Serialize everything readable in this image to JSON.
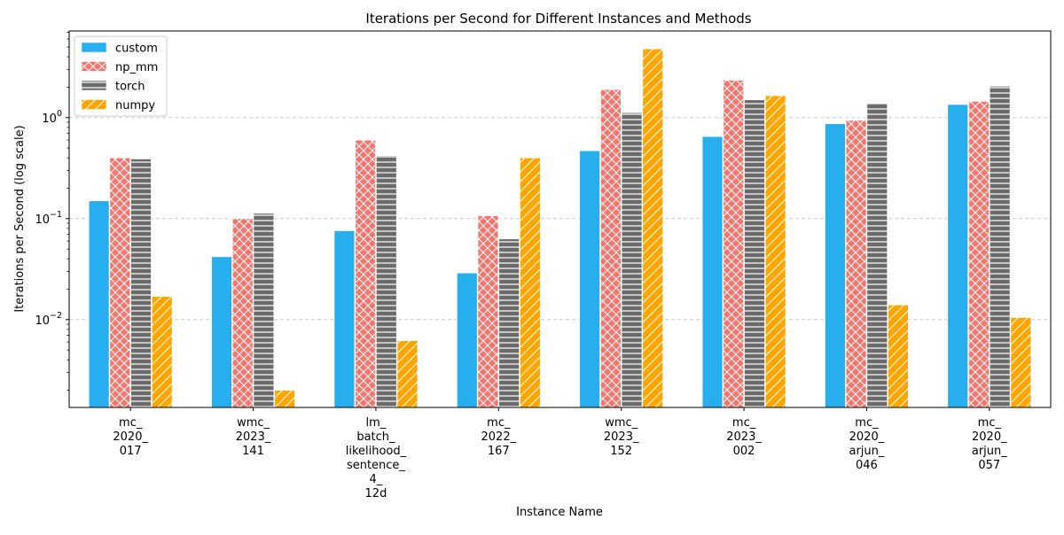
{
  "chart_data": {
    "type": "bar",
    "title": "Iterations per Second for Different Instances and Methods",
    "xlabel": "Instance Name",
    "ylabel": "Iterations per Second (log scale)",
    "yscale": "log",
    "ylim": [
      0.00135,
      7.2
    ],
    "yticks": [
      {
        "value": 0.01,
        "base": "10",
        "exp": "−2"
      },
      {
        "value": 0.1,
        "base": "10",
        "exp": "−1"
      },
      {
        "value": 1,
        "base": "10",
        "exp": "0"
      }
    ],
    "grid": "y dashed",
    "legend_position": "top-left",
    "categories": [
      "mc_\n2020_\n017",
      "wmc_\n2023_\n141",
      "lm_\nbatch_\nlikelihood_\nsentence_\n4_\n12d",
      "mc_\n2022_\n167",
      "wmc_\n2023_\n152",
      "mc_\n2023_\n002",
      "mc_\n2020_\narjun_\n046",
      "mc_\n2020_\narjun_\n057"
    ],
    "series": [
      {
        "name": "custom",
        "color": "#27aeef",
        "pattern": "none",
        "values": [
          0.15,
          0.042,
          0.076,
          0.029,
          0.47,
          0.65,
          0.87,
          1.35
        ]
      },
      {
        "name": "np_mm",
        "color": "#f2766e",
        "pattern": "crosshatch",
        "values": [
          0.4,
          0.1,
          0.6,
          0.107,
          1.9,
          2.35,
          0.94,
          1.45
        ]
      },
      {
        "name": "torch",
        "color": "#6b6b6b",
        "pattern": "horizontal",
        "values": [
          0.39,
          0.113,
          0.42,
          0.063,
          1.12,
          1.5,
          1.4,
          2.05
        ]
      },
      {
        "name": "numpy",
        "color": "#ffa500",
        "pattern": "diagonal",
        "values": [
          0.017,
          0.002,
          0.0062,
          0.4,
          4.8,
          1.65,
          0.014,
          0.0105
        ]
      }
    ]
  }
}
